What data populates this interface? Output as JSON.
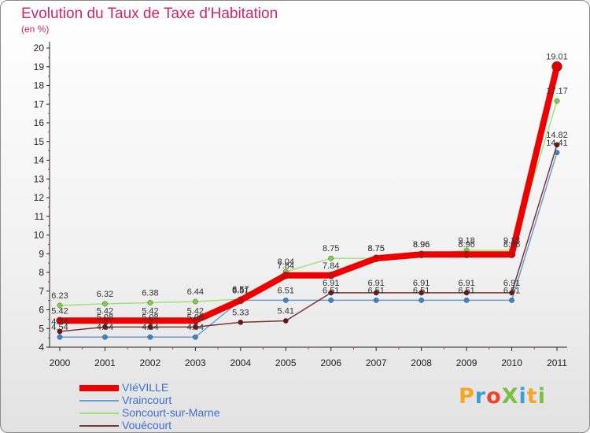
{
  "header": {
    "title": "Evolution du Taux de Taxe d'Habitation",
    "unit": "(en %)"
  },
  "brand": {
    "logo_text": "ProXiti",
    "logo_colors": [
      "#f5a623",
      "#3aa0dc",
      "#e8452b",
      "#7bc043",
      "#3aa0dc",
      "#f5a623",
      "#7bc043"
    ]
  },
  "chart_data": {
    "type": "line",
    "title": "Evolution du Taux de Taxe d'Habitation",
    "ylabel": "(en %)",
    "xlabel": "",
    "categories": [
      "2000",
      "2001",
      "2002",
      "2003",
      "2004",
      "2005",
      "2006",
      "2007",
      "2008",
      "2009",
      "2010",
      "2011"
    ],
    "ylim": [
      4,
      20
    ],
    "yticks": [
      4,
      5,
      6,
      7,
      8,
      9,
      10,
      11,
      12,
      13,
      14,
      15,
      16,
      17,
      18,
      19,
      20
    ],
    "grid": false,
    "legend_position": "bottom-left",
    "series": [
      {
        "name": "Vraincourt",
        "color": "#6b9fd0",
        "marker": "#3a84cc",
        "values": [
          4.54,
          4.54,
          4.54,
          4.54,
          6.51,
          6.51,
          6.51,
          6.51,
          6.51,
          6.51,
          6.51,
          14.41
        ],
        "labels": [
          "4.54",
          "4.54",
          "4.54",
          "4.54",
          "6.51",
          "6.51",
          "6.51",
          "6.51",
          "6.51",
          "6.51",
          "6.51",
          "14.41"
        ]
      },
      {
        "name": "Vouécourt",
        "color": "#7a3535",
        "marker": "#6b1414",
        "values": [
          4.84,
          5.08,
          5.08,
          5.08,
          5.33,
          5.41,
          6.91,
          6.91,
          6.91,
          6.91,
          6.91,
          14.82
        ],
        "labels": [
          "4.84",
          "5.08",
          "5.08",
          "5.08",
          "5.33",
          "5.41",
          "6.91",
          "6.91",
          "6.91",
          "6.91",
          "6.91",
          "14.82"
        ]
      },
      {
        "name": "Soncourt-sur-Marne",
        "color": "#9ee27a",
        "marker": "#7bd13f",
        "values": [
          6.23,
          6.32,
          6.38,
          6.44,
          6.57,
          8.04,
          8.75,
          8.75,
          8.96,
          9.18,
          9.18,
          17.17
        ],
        "labels": [
          "6.23",
          "6.32",
          "6.38",
          "6.44",
          "6.57",
          "8.04",
          "8.75",
          "8.75",
          "8.96",
          "9.18",
          "9.18",
          "17.17"
        ]
      },
      {
        "name": "VIéVILLE",
        "color": "#ee0000",
        "marker": "#dd0000",
        "values": [
          5.42,
          5.42,
          5.42,
          5.42,
          6.51,
          7.84,
          7.84,
          8.75,
          8.96,
          8.96,
          8.96,
          19.01
        ],
        "labels": [
          "5.42",
          "5.42",
          "5.42",
          "5.42",
          "6.51",
          "7.84",
          "7.84",
          "8.75",
          "8.96",
          "8.96",
          "8.96",
          "19.01"
        ]
      }
    ],
    "legend": [
      {
        "name": "VIéVILLE",
        "color": "#ee0000",
        "width": 8
      },
      {
        "name": "Vraincourt",
        "color": "#6b9fd0",
        "width": 2
      },
      {
        "name": "Soncourt-sur-Marne",
        "color": "#9ee27a",
        "width": 2
      },
      {
        "name": "Vouécourt",
        "color": "#7a3535",
        "width": 2
      }
    ]
  }
}
